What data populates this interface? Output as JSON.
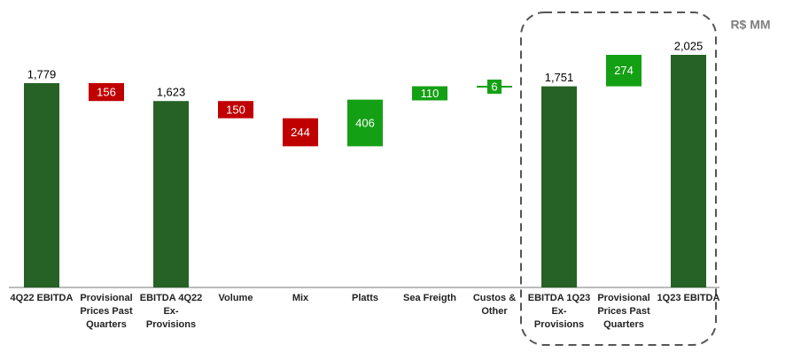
{
  "chart_data": {
    "type": "waterfall",
    "unit_label": "R$ MM",
    "categories": [
      "4Q22 EBITDA",
      "Provisional Prices Past Quarters",
      "EBITDA 4Q22 Ex-Provisions",
      "Volume",
      "Mix",
      "Platts",
      "Sea Freigth",
      "Custos & Other",
      "EBITDA 1Q23 Ex-Provisions",
      "Provisional Prices Past Quarters",
      "1Q23 EBITDA"
    ],
    "values": [
      1779,
      156,
      1623,
      150,
      244,
      406,
      110,
      6,
      1751,
      274,
      2025
    ],
    "value_labels": [
      "1,779",
      "156",
      "1,623",
      "150",
      "244",
      "406",
      "110",
      "6",
      "1,751",
      "274",
      "2,025"
    ],
    "measures": [
      "total",
      "decrease",
      "total",
      "decrease",
      "decrease",
      "increase",
      "increase",
      "increase",
      "total",
      "increase",
      "total"
    ],
    "colors": {
      "total": "#266226",
      "decrease": "#c00000",
      "increase": "#14a014"
    }
  }
}
